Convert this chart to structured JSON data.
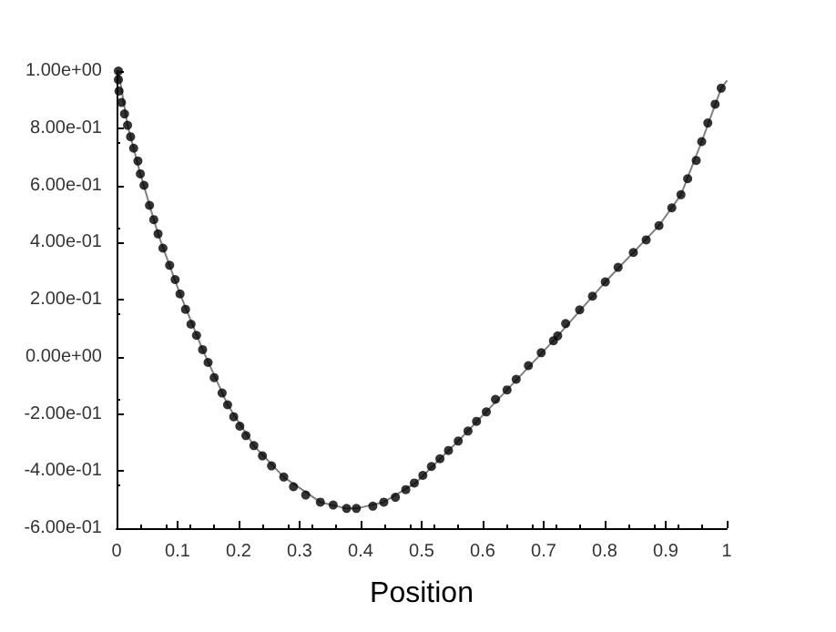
{
  "chart_data": {
    "type": "scatter",
    "xlabel": "Position",
    "xlim": [
      0,
      1
    ],
    "xticks": [
      0,
      0.1,
      0.2,
      0.3,
      0.4,
      0.5,
      0.6,
      0.7,
      0.8,
      0.9,
      1
    ],
    "ylim": [
      -0.6,
      1
    ],
    "yticks": [
      {
        "value": -0.6,
        "label": "-6.00e-01"
      },
      {
        "value": -0.4,
        "label": "-4.00e-01"
      },
      {
        "value": -0.2,
        "label": "-2.00e-01"
      },
      {
        "value": 0,
        "label": "0.00e+00"
      },
      {
        "value": 0.2,
        "label": "2.00e-01"
      },
      {
        "value": 0.4,
        "label": "4.00e-01"
      },
      {
        "value": 0.6,
        "label": "6.00e-01"
      },
      {
        "value": 0.8,
        "label": "8.00e-01"
      },
      {
        "value": 1,
        "label": "1.00e+00"
      }
    ],
    "grid": false,
    "series": [
      {
        "type": "line",
        "color": "#808080",
        "marker": "none",
        "line_style": "solid",
        "x": [
          0.003,
          0.018,
          0.039,
          0.068,
          0.104,
          0.141,
          0.182,
          0.225,
          0.274,
          0.334,
          0.377,
          0.393,
          0.438,
          0.49,
          0.56,
          0.64,
          0.716,
          0.801,
          0.889,
          0.925,
          0.959,
          0.991,
          1.0
        ],
        "values": [
          1.0,
          0.81,
          0.64,
          0.43,
          0.22,
          0.025,
          -0.168,
          -0.311,
          -0.421,
          -0.509,
          -0.531,
          -0.531,
          -0.509,
          -0.442,
          -0.295,
          -0.116,
          0.056,
          0.262,
          0.459,
          0.567,
          0.753,
          0.94,
          0.965
        ]
      },
      {
        "color": "#000000",
        "marker": "circle",
        "x": [
          0.003,
          0.003,
          0.004,
          0.008,
          0.013,
          0.018,
          0.023,
          0.028,
          0.035,
          0.039,
          0.045,
          0.054,
          0.061,
          0.068,
          0.076,
          0.087,
          0.096,
          0.104,
          0.113,
          0.122,
          0.131,
          0.141,
          0.15,
          0.16,
          0.173,
          0.182,
          0.192,
          0.202,
          0.212,
          0.225,
          0.239,
          0.254,
          0.274,
          0.29,
          0.31,
          0.334,
          0.355,
          0.377,
          0.393,
          0.42,
          0.438,
          0.457,
          0.474,
          0.488,
          0.502,
          0.516,
          0.53,
          0.544,
          0.56,
          0.576,
          0.59,
          0.606,
          0.621,
          0.64,
          0.655,
          0.675,
          0.696,
          0.716,
          0.723,
          0.736,
          0.759,
          0.78,
          0.801,
          0.822,
          0.847,
          0.868,
          0.889,
          0.91,
          0.925,
          0.936,
          0.95,
          0.959,
          0.969,
          0.981,
          0.991
        ],
        "values": [
          1.0,
          0.97,
          0.93,
          0.89,
          0.85,
          0.81,
          0.77,
          0.73,
          0.685,
          0.64,
          0.6,
          0.53,
          0.48,
          0.43,
          0.38,
          0.32,
          0.27,
          0.22,
          0.166,
          0.114,
          0.075,
          0.025,
          -0.02,
          -0.073,
          -0.127,
          -0.168,
          -0.21,
          -0.243,
          -0.276,
          -0.311,
          -0.347,
          -0.382,
          -0.421,
          -0.455,
          -0.484,
          -0.509,
          -0.519,
          -0.531,
          -0.531,
          -0.523,
          -0.509,
          -0.492,
          -0.465,
          -0.442,
          -0.415,
          -0.384,
          -0.357,
          -0.328,
          -0.295,
          -0.26,
          -0.226,
          -0.193,
          -0.149,
          -0.116,
          -0.079,
          -0.031,
          0.014,
          0.056,
          0.073,
          0.116,
          0.164,
          0.212,
          0.262,
          0.313,
          0.365,
          0.409,
          0.459,
          0.521,
          0.567,
          0.623,
          0.687,
          0.753,
          0.818,
          0.884,
          0.94
        ]
      }
    ]
  }
}
